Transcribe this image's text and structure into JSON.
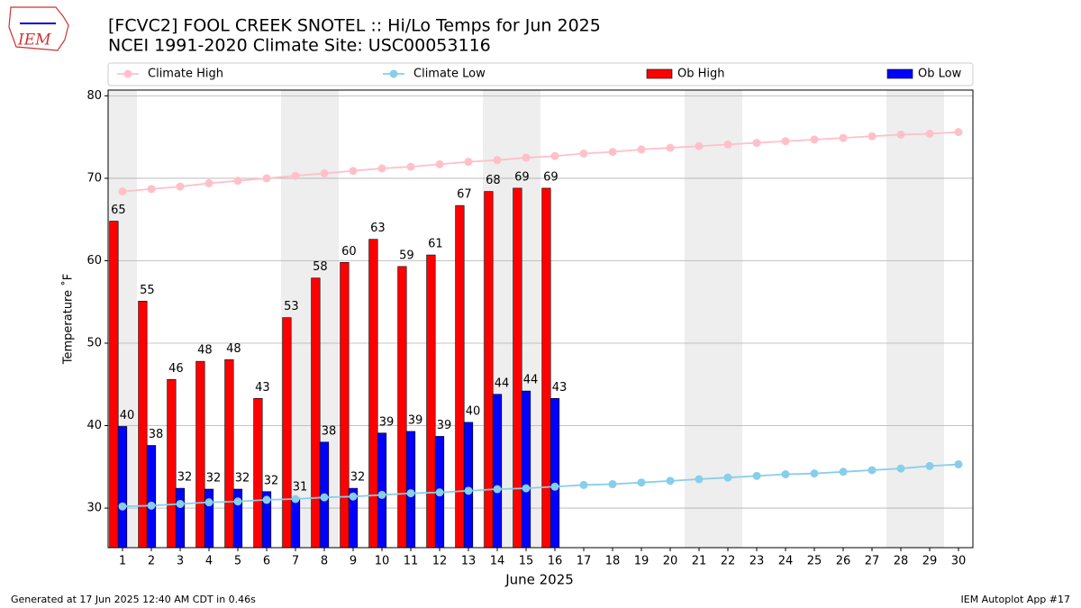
{
  "logo": "IEM",
  "footer_left": "Generated at 17 Jun 2025 12:40 AM CDT in 0.46s",
  "footer_right": "IEM Autoplot App #17",
  "chart_data": {
    "type": "bar",
    "title": "[FCVC2] FOOL CREEK SNOTEL :: Hi/Lo Temps for Jun 2025",
    "subtitle": "NCEI 1991-2020 Climate Site: USC00053116",
    "xlabel": "June 2025",
    "ylabel": "Temperature ˚F",
    "categories": [
      "1",
      "2",
      "3",
      "4",
      "5",
      "6",
      "7",
      "8",
      "9",
      "10",
      "11",
      "12",
      "13",
      "14",
      "15",
      "16",
      "17",
      "18",
      "19",
      "20",
      "21",
      "22",
      "23",
      "24",
      "25",
      "26",
      "27",
      "28",
      "29",
      "30"
    ],
    "shaded_days": [
      1,
      7,
      8,
      14,
      15,
      21,
      22,
      28,
      29
    ],
    "ylim": [
      25.2,
      80.7
    ],
    "yticks": [
      30,
      40,
      50,
      60,
      70,
      80
    ],
    "grid": true,
    "legend": "top",
    "series": [
      {
        "name": "Climate High",
        "kind": "line",
        "color": "#ffc0cb",
        "values": [
          68.4,
          68.7,
          69.0,
          69.4,
          69.7,
          70.0,
          70.3,
          70.6,
          70.9,
          71.2,
          71.4,
          71.7,
          72.0,
          72.2,
          72.5,
          72.7,
          73.0,
          73.2,
          73.5,
          73.7,
          73.9,
          74.1,
          74.3,
          74.5,
          74.7,
          74.9,
          75.1,
          75.3,
          75.4,
          75.6
        ]
      },
      {
        "name": "Climate Low",
        "kind": "line",
        "color": "#87ceeb",
        "values": [
          30.2,
          30.3,
          30.5,
          30.7,
          30.8,
          31.0,
          31.1,
          31.3,
          31.4,
          31.6,
          31.8,
          31.9,
          32.1,
          32.3,
          32.4,
          32.6,
          32.8,
          32.9,
          33.1,
          33.3,
          33.5,
          33.7,
          33.9,
          34.1,
          34.2,
          34.4,
          34.6,
          34.8,
          35.1,
          35.3
        ]
      },
      {
        "name": "Ob High",
        "kind": "bar",
        "color": "#ff0000",
        "values": [
          64.8,
          55.1,
          45.6,
          47.8,
          48.0,
          43.3,
          53.1,
          57.9,
          59.8,
          62.6,
          59.3,
          60.7,
          66.7,
          68.4,
          68.8,
          68.8,
          null,
          null,
          null,
          null,
          null,
          null,
          null,
          null,
          null,
          null,
          null,
          null,
          null,
          null
        ],
        "value_labels": [
          "65",
          "55",
          "46",
          "48",
          "48",
          "43",
          "53",
          "58",
          "60",
          "63",
          "59",
          "61",
          "67",
          "68",
          "69",
          "69",
          null,
          null,
          null,
          null,
          null,
          null,
          null,
          null,
          null,
          null,
          null,
          null,
          null,
          null
        ]
      },
      {
        "name": "Ob Low",
        "kind": "bar",
        "color": "#0000ff",
        "values": [
          39.9,
          37.6,
          32.4,
          32.3,
          32.3,
          32.0,
          31.2,
          38.0,
          32.4,
          39.1,
          39.3,
          38.7,
          40.4,
          43.8,
          44.2,
          43.3,
          null,
          null,
          null,
          null,
          null,
          null,
          null,
          null,
          null,
          null,
          null,
          null,
          null,
          null
        ],
        "value_labels": [
          "40",
          "38",
          "32",
          "32",
          "32",
          "32",
          "31",
          "38",
          "32",
          "39",
          "39",
          "39",
          "40",
          "44",
          "44",
          "43",
          null,
          null,
          null,
          null,
          null,
          null,
          null,
          null,
          null,
          null,
          null,
          null,
          null,
          null
        ]
      }
    ]
  }
}
